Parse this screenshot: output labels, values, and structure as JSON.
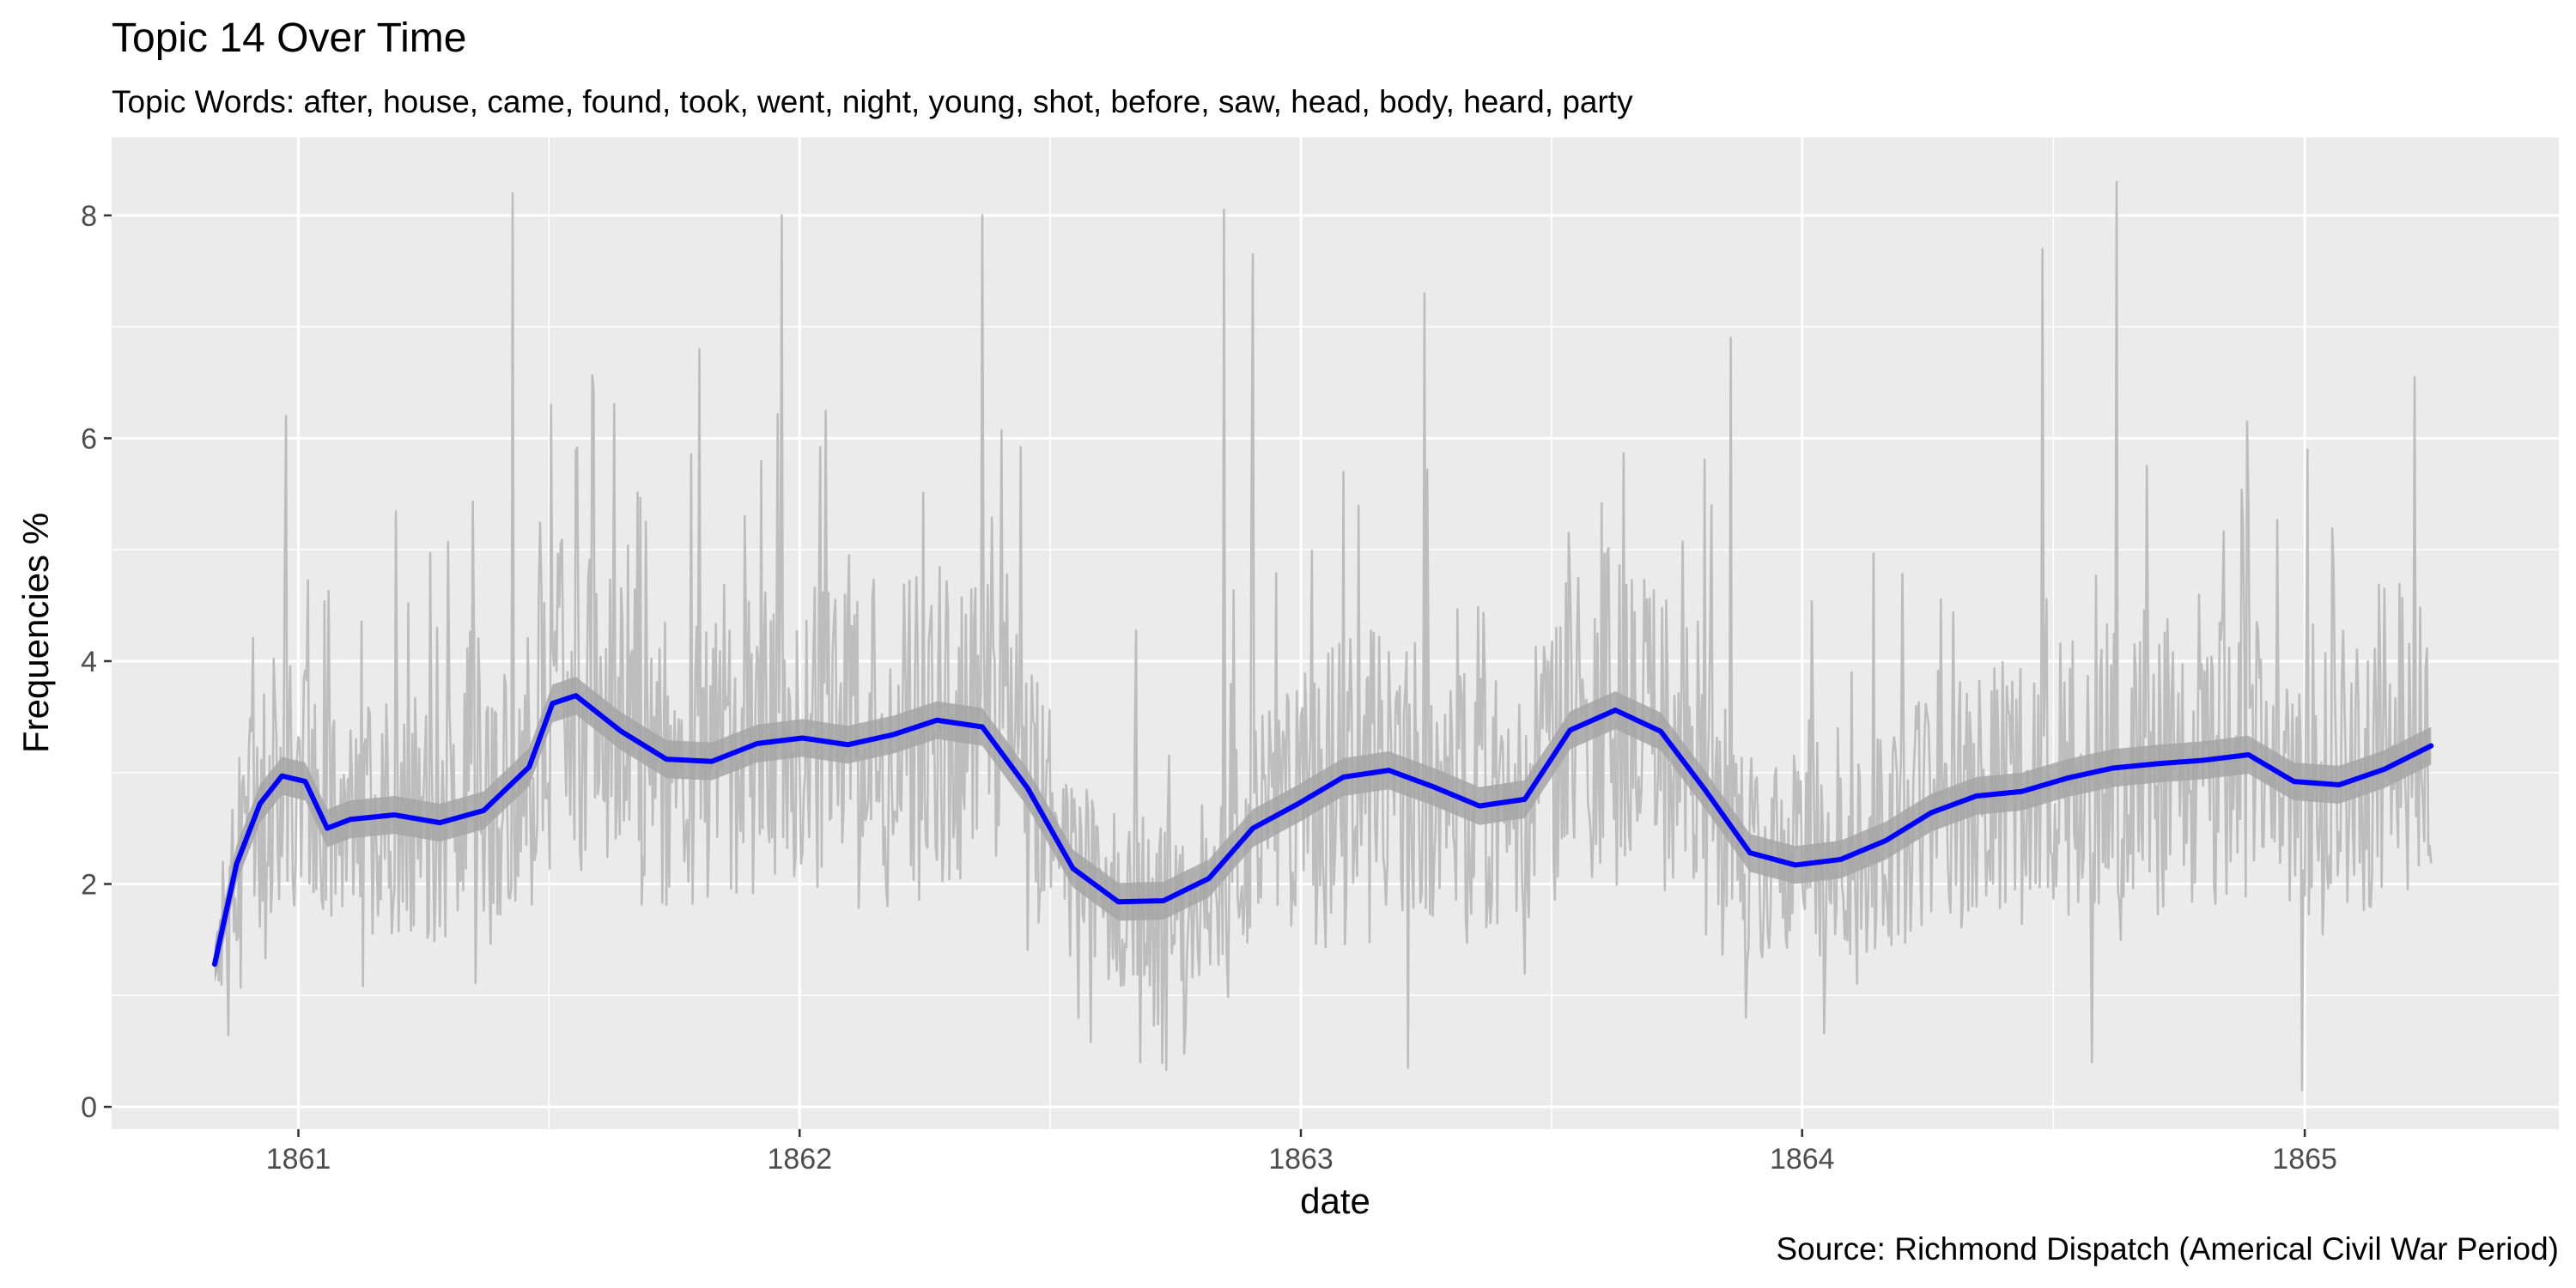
{
  "chart_data": {
    "type": "line",
    "title": "Topic 14 Over Time",
    "subtitle": "Topic Words: after, house, came, found, took, went, night, young, shot, before, saw, head, body, heard, party",
    "caption": "Source: Richmond Dispatch (Americal Civil War Period)",
    "xlabel": "date",
    "ylabel": "Frequencies %",
    "xlim": [
      "1860-08-18",
      "1865-07-05"
    ],
    "ylim": [
      -0.2,
      8.7
    ],
    "x_ticks": [
      "1861",
      "1862",
      "1863",
      "1864",
      "1865"
    ],
    "x_tick_dates": [
      "1861-01-01",
      "1862-01-01",
      "1863-01-01",
      "1864-01-01",
      "1865-01-01"
    ],
    "y_ticks": [
      0,
      2,
      4,
      6,
      8
    ],
    "grid": true,
    "background": "#ebebeb",
    "series": [
      {
        "kind": "raw daily frequencies",
        "color": "#bdbdbd",
        "date_range": [
          "1860-11-01",
          "1865-04-03"
        ],
        "summary": {
          "min": 0.15,
          "max": 8.3,
          "typical_range": [
            1.0,
            5.0
          ]
        },
        "peaks": [
          {
            "x": "1860-12-23",
            "y": 6.2
          },
          {
            "x": "1861-06-06",
            "y": 8.2
          },
          {
            "x": "1861-07-04",
            "y": 6.3
          },
          {
            "x": "1861-10-20",
            "y": 6.8
          },
          {
            "x": "1861-12-19",
            "y": 8.0
          },
          {
            "x": "1862-05-14",
            "y": 8.0
          },
          {
            "x": "1862-11-06",
            "y": 8.05
          },
          {
            "x": "1862-11-27",
            "y": 7.65
          },
          {
            "x": "1863-04-01",
            "y": 7.3
          },
          {
            "x": "1863-11-10",
            "y": 6.9
          },
          {
            "x": "1864-06-24",
            "y": 7.7
          },
          {
            "x": "1864-08-17",
            "y": 8.3
          },
          {
            "x": "1864-11-20",
            "y": 6.15
          },
          {
            "x": "1865-03-22",
            "y": 6.55
          }
        ],
        "troughs": [
          {
            "x": "1862-09-06",
            "y": 0.4
          },
          {
            "x": "1863-03-20",
            "y": 0.35
          },
          {
            "x": "1864-07-30",
            "y": 0.4
          },
          {
            "x": "1864-12-30",
            "y": 0.15
          }
        ]
      },
      {
        "kind": "smoothed trend",
        "color": "#0000ff",
        "ribbon_color": "#a6a6a6",
        "ribbon_half_width": 0.17,
        "x": [
          "1860-11-01",
          "1860-11-17",
          "1860-12-04",
          "1860-12-20",
          "1861-01-06",
          "1861-01-22",
          "1861-02-08",
          "1861-03-12",
          "1861-04-14",
          "1861-05-16",
          "1861-06-18",
          "1861-07-05",
          "1861-07-22",
          "1861-08-24",
          "1861-09-26",
          "1861-10-29",
          "1861-12-01",
          "1862-01-03",
          "1862-02-05",
          "1862-03-10",
          "1862-04-11",
          "1862-05-14",
          "1862-06-16",
          "1862-07-19",
          "1862-08-21",
          "1862-09-23",
          "1862-10-26",
          "1862-11-27",
          "1862-12-30",
          "1863-02-01",
          "1863-03-06",
          "1863-04-08",
          "1863-05-11",
          "1863-06-13",
          "1863-07-16",
          "1863-08-18",
          "1863-09-20",
          "1863-10-22",
          "1863-11-24",
          "1863-12-27",
          "1864-01-29",
          "1864-03-02",
          "1864-04-04",
          "1864-05-07",
          "1864-06-09",
          "1864-07-12",
          "1864-08-14",
          "1864-09-16",
          "1864-10-19",
          "1864-11-21",
          "1864-12-24",
          "1865-01-26",
          "1865-02-28",
          "1865-04-03"
        ],
        "y": [
          1.28,
          2.18,
          2.72,
          2.97,
          2.92,
          2.5,
          2.58,
          2.62,
          2.55,
          2.66,
          3.05,
          3.62,
          3.69,
          3.37,
          3.12,
          3.1,
          3.26,
          3.31,
          3.25,
          3.34,
          3.47,
          3.41,
          2.86,
          2.14,
          1.84,
          1.85,
          2.05,
          2.5,
          2.72,
          2.96,
          3.02,
          2.87,
          2.7,
          2.76,
          3.38,
          3.56,
          3.37,
          2.85,
          2.28,
          2.17,
          2.22,
          2.39,
          2.64,
          2.79,
          2.83,
          2.95,
          3.04,
          3.08,
          3.11,
          3.16,
          2.92,
          2.89,
          3.03,
          3.24
        ]
      }
    ]
  }
}
